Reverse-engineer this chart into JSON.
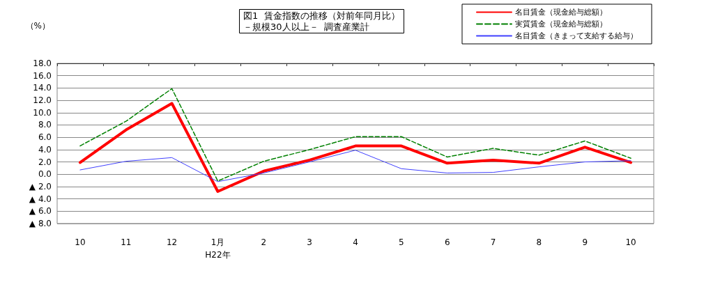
{
  "chart_data": {
    "type": "line",
    "title": "図1  賃金指数の推移（対前年同月比）",
    "subtitle": "－規模30人以上－  調査産業計",
    "ylabel": "（%）",
    "categories": [
      "10",
      "11",
      "12",
      "1月\nH22年",
      "2",
      "3",
      "4",
      "5",
      "6",
      "7",
      "8",
      "9",
      "10"
    ],
    "series": [
      {
        "name": "名目賃金（現金給与総額）",
        "color": "#ff0000",
        "line_style": "solid",
        "values": [
          1.9,
          7.2,
          11.5,
          -2.8,
          0.5,
          2.3,
          4.6,
          4.6,
          1.8,
          2.3,
          1.8,
          4.4,
          1.9
        ]
      },
      {
        "name": "実質賃金（現金給与総額）",
        "color": "#008000",
        "line_style": "dashed",
        "values": [
          4.6,
          8.6,
          13.9,
          -1.1,
          2.1,
          4.0,
          6.1,
          6.1,
          2.8,
          4.2,
          3.1,
          5.4,
          2.6
        ]
      },
      {
        "name": "名目賃金（きまって支給する給与）",
        "color": "#4040ff",
        "line_style": "solid",
        "values": [
          0.7,
          2.1,
          2.7,
          -1.2,
          0.2,
          2.0,
          3.9,
          0.9,
          0.2,
          0.3,
          1.2,
          2.0,
          2.2
        ]
      }
    ],
    "ylim": [
      -8,
      18
    ],
    "yticks": [
      {
        "value": -8,
        "label": "▲ 8.0"
      },
      {
        "value": -6,
        "label": "▲ 6.0"
      },
      {
        "value": -4,
        "label": "▲ 4.0"
      },
      {
        "value": -2,
        "label": "▲ 2.0"
      },
      {
        "value": 0,
        "label": "0.0"
      },
      {
        "value": 2,
        "label": "2.0"
      },
      {
        "value": 4,
        "label": "4.0"
      },
      {
        "value": 6,
        "label": "6.0"
      },
      {
        "value": 8,
        "label": "8.0"
      },
      {
        "value": 10,
        "label": "10.0"
      },
      {
        "value": 12,
        "label": "12.0"
      },
      {
        "value": 14,
        "label": "14.0"
      },
      {
        "value": 16,
        "label": "16.0"
      },
      {
        "value": 18,
        "label": "18.0"
      }
    ],
    "grid": "y",
    "legend": "top right",
    "marker": "none"
  }
}
